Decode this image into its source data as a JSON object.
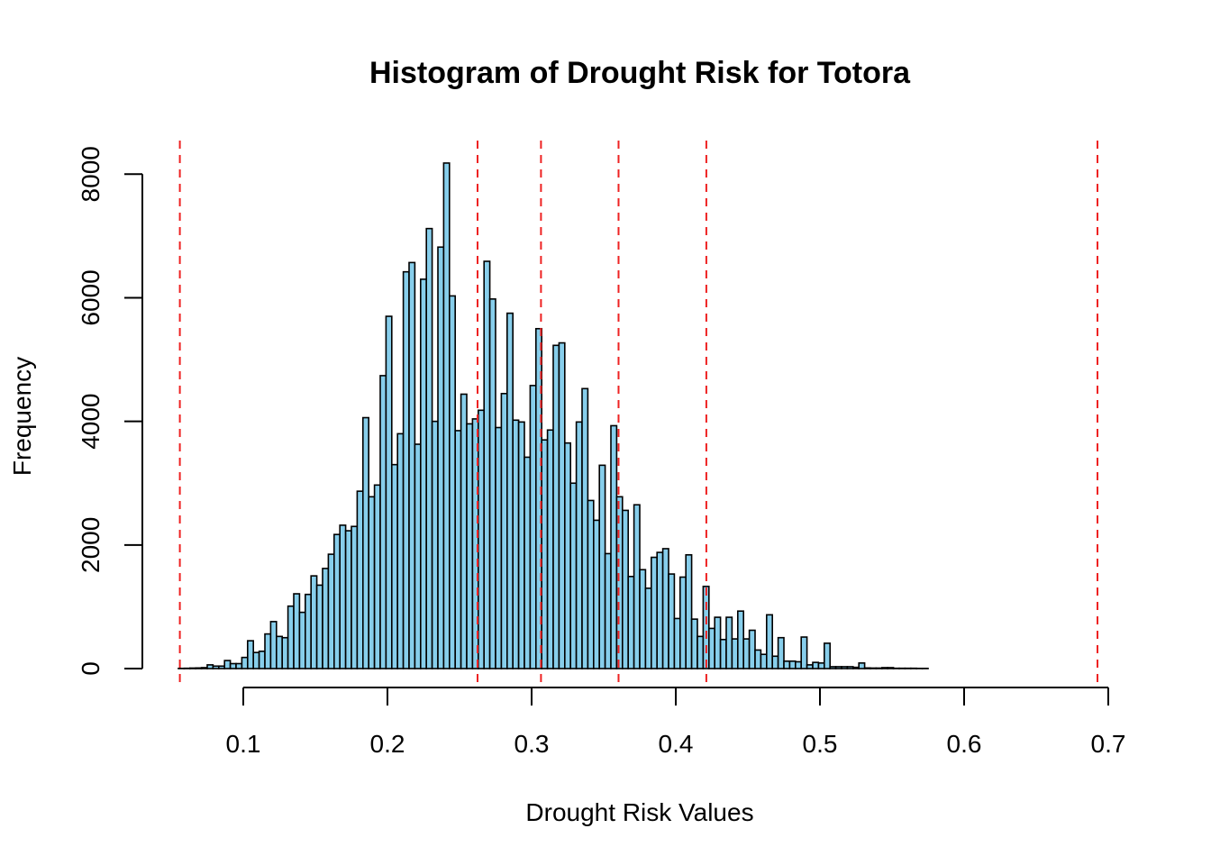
{
  "chart_data": {
    "type": "bar",
    "title": "Histogram of Drought Risk for Totora",
    "xlabel": "Drought Risk Values",
    "ylabel": "Frequency",
    "xlim": [
      0.055,
      0.695
    ],
    "ylim": [
      0,
      8500
    ],
    "x_ticks": [
      0.1,
      0.2,
      0.3,
      0.4,
      0.5,
      0.6,
      0.7
    ],
    "x_tick_labels": [
      "0.1",
      "0.2",
      "0.3",
      "0.4",
      "0.5",
      "0.6",
      "0.7"
    ],
    "y_ticks": [
      0,
      2000,
      4000,
      6000,
      8000
    ],
    "y_tick_labels": [
      "0",
      "2000",
      "4000",
      "6000",
      "8000"
    ],
    "bin_start": 0.055,
    "bin_width": 0.004,
    "bar_color": "#87CEEB",
    "reference_line_color": "#ee2222",
    "reference_lines": [
      0.056,
      0.2625,
      0.3065,
      0.3603,
      0.4212,
      0.6925
    ],
    "values": [
      3,
      5,
      8,
      10,
      15,
      60,
      40,
      40,
      130,
      80,
      80,
      180,
      450,
      260,
      280,
      560,
      760,
      520,
      500,
      1010,
      1210,
      910,
      1200,
      1500,
      1350,
      1620,
      1850,
      2170,
      2320,
      2230,
      2300,
      2870,
      4060,
      2780,
      2970,
      4740,
      5700,
      3300,
      3800,
      6420,
      6570,
      3630,
      6300,
      7120,
      4000,
      6820,
      8180,
      6030,
      3850,
      4440,
      3960,
      4040,
      4180,
      6590,
      5980,
      3900,
      4450,
      5750,
      4020,
      3990,
      3420,
      4580,
      5500,
      3700,
      3860,
      5230,
      5270,
      3650,
      3000,
      3990,
      4530,
      2720,
      2400,
      3290,
      1860,
      3930,
      2780,
      2560,
      1490,
      2650,
      1600,
      1300,
      1800,
      1880,
      1940,
      1530,
      810,
      1480,
      1840,
      800,
      520,
      1330,
      650,
      830,
      470,
      830,
      480,
      930,
      480,
      620,
      300,
      230,
      870,
      200,
      500,
      120,
      120,
      110,
      510,
      60,
      100,
      90,
      410,
      30,
      30,
      30,
      30,
      20,
      90,
      10,
      8,
      8,
      15,
      15,
      5,
      5,
      5,
      5,
      3,
      3
    ]
  }
}
